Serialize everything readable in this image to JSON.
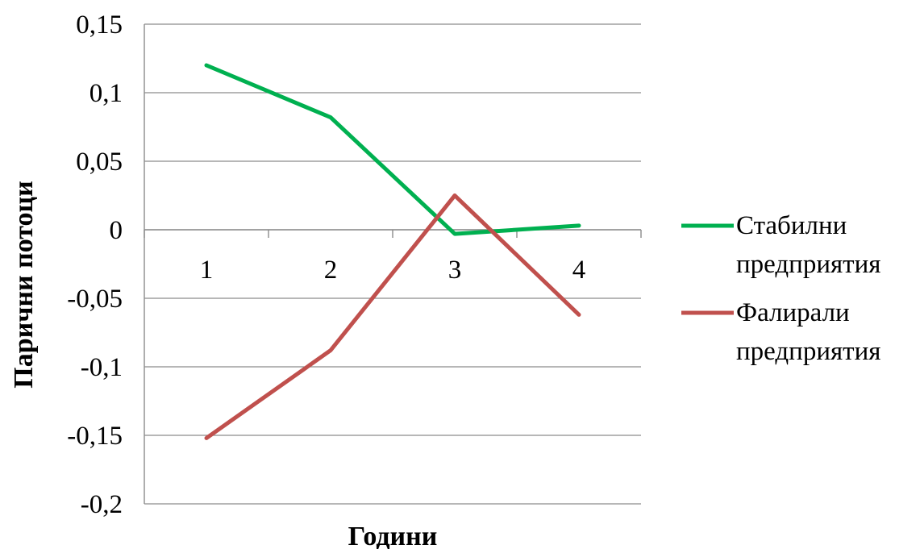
{
  "chart_data": {
    "type": "line",
    "title": "",
    "xlabel": "Години",
    "ylabel": "Парични  потоци",
    "categories": [
      "1",
      "2",
      "3",
      "4"
    ],
    "yticks": [
      "0,15",
      "0,1",
      "0,05",
      "0",
      "-0,05",
      "-0,1",
      "-0,15",
      "-0,2"
    ],
    "ylim": [
      -0.2,
      0.15
    ],
    "grid": true,
    "legend_position": "right",
    "series": [
      {
        "name": "Стабилни предприятия",
        "name_lines": [
          "Стабилни",
          "предприятия"
        ],
        "color": "#00b050",
        "values": [
          0.12,
          0.082,
          -0.003,
          0.003
        ]
      },
      {
        "name": "Фалирали предприятия",
        "name_lines": [
          "Фалирали",
          "предприятия"
        ],
        "color": "#c0504d",
        "values": [
          -0.152,
          -0.088,
          0.025,
          -0.062
        ]
      }
    ]
  }
}
